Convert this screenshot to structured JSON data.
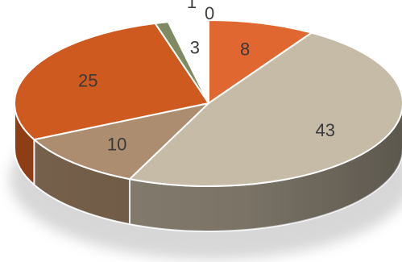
{
  "chart_data": {
    "type": "pie",
    "style": "3d",
    "legend": "none",
    "slices": [
      {
        "label": "8",
        "value": 8,
        "color": "#e0672f"
      },
      {
        "label": "43",
        "value": 43,
        "color": "#c6bba7"
      },
      {
        "label": "10",
        "value": 10,
        "color": "#ad8d6f"
      },
      {
        "label": "25",
        "value": 25,
        "color": "#cf5a1f"
      },
      {
        "label": "1",
        "value": 1,
        "color": "#7e8b62"
      },
      {
        "label": "3",
        "value": 3,
        "color": "#ffffff"
      },
      {
        "label": "0",
        "value": 0,
        "color": "#7a5a3c"
      }
    ]
  }
}
